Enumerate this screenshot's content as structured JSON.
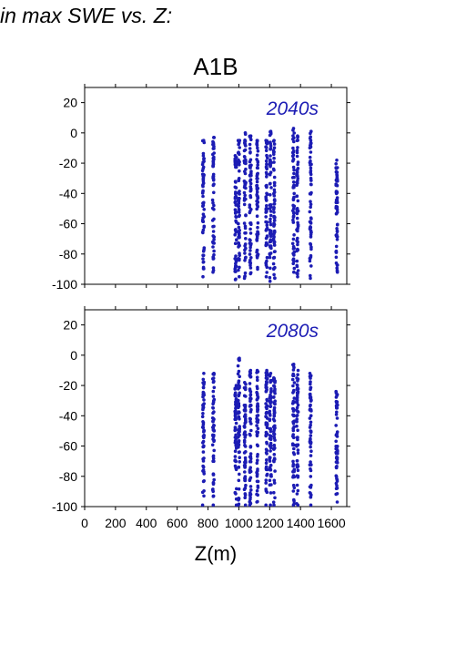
{
  "heading": "in max SWE vs. Z:",
  "chart_data": {
    "type": "scatter",
    "title": "A1B",
    "xlabel": "Z(m)",
    "ylabel": "",
    "xlim": [
      0,
      1700
    ],
    "ylim": [
      -100,
      30
    ],
    "xticks": [
      0,
      200,
      400,
      600,
      800,
      1000,
      1200,
      1400,
      1600
    ],
    "yticks": [
      20,
      0,
      -20,
      -40,
      -60,
      -80,
      -100
    ],
    "marker_color": "#1c1cb4",
    "label_color": "#1c1cb4",
    "panels": [
      {
        "label": "2040s",
        "columns": [
          {
            "z": 770,
            "min": -95,
            "max": -5
          },
          {
            "z": 835,
            "min": -92,
            "max": -3
          },
          {
            "z": 980,
            "min": -97,
            "max": -15
          },
          {
            "z": 1000,
            "min": -95,
            "max": -5
          },
          {
            "z": 1040,
            "min": -96,
            "max": 0
          },
          {
            "z": 1075,
            "min": -93,
            "max": -2
          },
          {
            "z": 1120,
            "min": -90,
            "max": -5
          },
          {
            "z": 1180,
            "min": -95,
            "max": -5
          },
          {
            "z": 1205,
            "min": -98,
            "max": 1
          },
          {
            "z": 1230,
            "min": -96,
            "max": -5
          },
          {
            "z": 1355,
            "min": -92,
            "max": 3
          },
          {
            "z": 1380,
            "min": -95,
            "max": -2
          },
          {
            "z": 1465,
            "min": -96,
            "max": 1
          },
          {
            "z": 1635,
            "min": -92,
            "max": -18
          }
        ]
      },
      {
        "label": "2080s",
        "columns": [
          {
            "z": 770,
            "min": -99,
            "max": -12
          },
          {
            "z": 835,
            "min": -99,
            "max": -12
          },
          {
            "z": 980,
            "min": -99,
            "max": -20
          },
          {
            "z": 1000,
            "min": -99,
            "max": -2
          },
          {
            "z": 1040,
            "min": -99,
            "max": -18
          },
          {
            "z": 1075,
            "min": -99,
            "max": -10
          },
          {
            "z": 1120,
            "min": -97,
            "max": -10
          },
          {
            "z": 1180,
            "min": -99,
            "max": -10
          },
          {
            "z": 1205,
            "min": -99,
            "max": -12
          },
          {
            "z": 1230,
            "min": -99,
            "max": -15
          },
          {
            "z": 1355,
            "min": -99,
            "max": -6
          },
          {
            "z": 1380,
            "min": -99,
            "max": -10
          },
          {
            "z": 1465,
            "min": -99,
            "max": -12
          },
          {
            "z": 1635,
            "min": -97,
            "max": -24
          }
        ]
      }
    ]
  }
}
